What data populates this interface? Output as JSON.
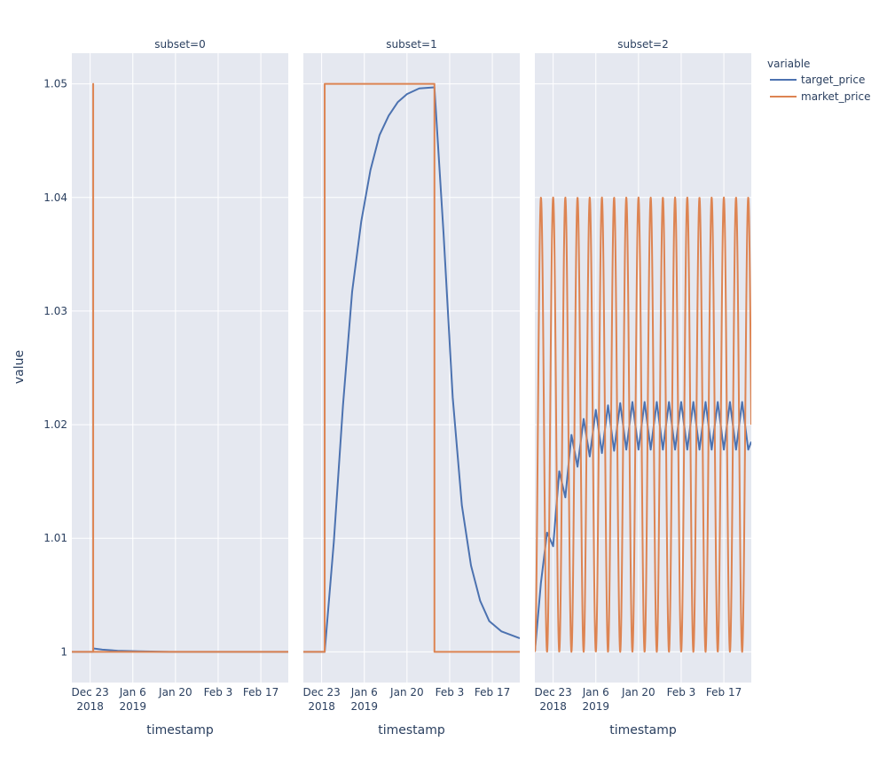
{
  "chart_data": {
    "type": "line",
    "facet_titles": [
      "subset=0",
      "subset=1",
      "subset=2"
    ],
    "xlabel": "timestamp",
    "ylabel": "value",
    "legend_title": "variable",
    "legend_position": "top-right",
    "grid": true,
    "x_range": [
      "2018-12-17",
      "2019-02-26"
    ],
    "ylim": [
      0.9973,
      1.0527
    ],
    "x_ticks": [
      {
        "date": "2018-12-23",
        "label": "Dec 23",
        "sub": "2018"
      },
      {
        "date": "2019-01-06",
        "label": "Jan 6",
        "sub": "2019"
      },
      {
        "date": "2019-01-20",
        "label": "Jan 20",
        "sub": ""
      },
      {
        "date": "2019-02-03",
        "label": "Feb 3",
        "sub": ""
      },
      {
        "date": "2019-02-17",
        "label": "Feb 17",
        "sub": ""
      }
    ],
    "y_ticks": [
      {
        "value": 1.0,
        "label": "1"
      },
      {
        "value": 1.01,
        "label": "1.01"
      },
      {
        "value": 1.02,
        "label": "1.02"
      },
      {
        "value": 1.03,
        "label": "1.03"
      },
      {
        "value": 1.04,
        "label": "1.04"
      },
      {
        "value": 1.05,
        "label": "1.05"
      }
    ],
    "colors": {
      "target_price": "#4c72b0",
      "market_price": "#dd8452"
    },
    "series_names": [
      "target_price",
      "market_price"
    ],
    "panels": [
      {
        "title": "subset=0",
        "series": [
          {
            "name": "target_price",
            "points": [
              [
                "2018-12-17",
                1.0
              ],
              [
                "2018-12-24",
                1.0
              ],
              [
                "2018-12-24",
                1.0003
              ],
              [
                "2018-12-27",
                1.0002
              ],
              [
                "2019-01-01",
                1.0001
              ],
              [
                "2019-01-08",
                1.00005
              ],
              [
                "2019-01-18",
                1.0
              ],
              [
                "2019-02-26",
                1.0
              ]
            ]
          },
          {
            "name": "market_price",
            "points": [
              [
                "2018-12-17",
                1.0
              ],
              [
                "2018-12-24",
                1.0
              ],
              [
                "2018-12-24",
                1.05
              ],
              [
                "2018-12-24",
                1.0
              ],
              [
                "2019-02-26",
                1.0
              ]
            ]
          }
        ]
      },
      {
        "title": "subset=1",
        "series": [
          {
            "name": "target_price",
            "points": [
              [
                "2018-12-17",
                1.0
              ],
              [
                "2018-12-24",
                1.0
              ],
              [
                "2018-12-27",
                1.0097
              ],
              [
                "2018-12-30",
                1.0217
              ],
              [
                "2019-01-02",
                1.0317
              ],
              [
                "2019-01-05",
                1.0379
              ],
              [
                "2019-01-08",
                1.0424
              ],
              [
                "2019-01-11",
                1.0455
              ],
              [
                "2019-01-14",
                1.0472
              ],
              [
                "2019-01-17",
                1.0484
              ],
              [
                "2019-01-20",
                1.0491
              ],
              [
                "2019-01-24",
                1.0496
              ],
              [
                "2019-01-29",
                1.0497
              ],
              [
                "2019-02-01",
                1.0368
              ],
              [
                "2019-02-04",
                1.0224
              ],
              [
                "2019-02-07",
                1.0129
              ],
              [
                "2019-02-10",
                1.0076
              ],
              [
                "2019-02-13",
                1.0045
              ],
              [
                "2019-02-16",
                1.0027
              ],
              [
                "2019-02-20",
                1.0018
              ],
              [
                "2019-02-26",
                1.0012
              ]
            ]
          },
          {
            "name": "market_price",
            "points": [
              [
                "2018-12-17",
                1.0
              ],
              [
                "2018-12-24",
                1.0
              ],
              [
                "2018-12-24",
                1.05
              ],
              [
                "2019-01-29",
                1.05
              ],
              [
                "2019-01-29",
                1.0
              ],
              [
                "2019-02-26",
                1.0
              ]
            ]
          }
        ]
      },
      {
        "title": "subset=2",
        "series": [
          {
            "name": "target_price",
            "points": [
              [
                "2018-12-17",
                1.0
              ],
              [
                "2018-12-19",
                1.0061
              ],
              [
                "2018-12-21",
                1.0105
              ],
              [
                "2018-12-23",
                1.0093
              ],
              [
                "2018-12-25",
                1.0159
              ],
              [
                "2018-12-27",
                1.0136
              ],
              [
                "2018-12-29",
                1.0191
              ],
              [
                "2018-12-31",
                1.0163
              ],
              [
                "2019-01-02",
                1.0205
              ],
              [
                "2019-01-04",
                1.0172
              ],
              [
                "2019-01-06",
                1.0213
              ],
              [
                "2019-01-08",
                1.0175
              ],
              [
                "2019-01-10",
                1.0217
              ],
              [
                "2019-01-12",
                1.0177
              ],
              [
                "2019-01-14",
                1.0219
              ],
              [
                "2019-01-16",
                1.0178
              ],
              [
                "2019-01-18",
                1.022
              ],
              [
                "2019-01-20",
                1.0178
              ],
              [
                "2019-01-22",
                1.022
              ],
              [
                "2019-01-24",
                1.0178
              ],
              [
                "2019-01-26",
                1.022
              ],
              [
                "2019-01-28",
                1.0178
              ],
              [
                "2019-01-30",
                1.022
              ],
              [
                "2019-02-01",
                1.0178
              ],
              [
                "2019-02-03",
                1.022
              ],
              [
                "2019-02-05",
                1.0178
              ],
              [
                "2019-02-07",
                1.022
              ],
              [
                "2019-02-09",
                1.0178
              ],
              [
                "2019-02-11",
                1.022
              ],
              [
                "2019-02-13",
                1.0178
              ],
              [
                "2019-02-15",
                1.022
              ],
              [
                "2019-02-17",
                1.0178
              ],
              [
                "2019-02-19",
                1.022
              ],
              [
                "2019-02-21",
                1.0178
              ],
              [
                "2019-02-23",
                1.022
              ],
              [
                "2019-02-25",
                1.0178
              ],
              [
                "2019-02-26",
                1.0185
              ]
            ]
          },
          {
            "name": "market_price",
            "type": "cosine",
            "start": "2018-12-17",
            "end": "2019-02-26",
            "period_days": 4,
            "min": 1.0,
            "max": 1.04
          }
        ]
      }
    ]
  }
}
